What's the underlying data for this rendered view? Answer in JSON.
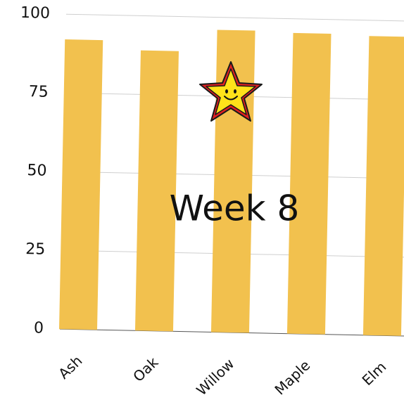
{
  "chart_data": {
    "type": "bar",
    "categories": [
      "Ash",
      "Oak",
      "Willow",
      "Maple",
      "Elm"
    ],
    "values": [
      92,
      89,
      96,
      95.5,
      95
    ],
    "color": "#f2c14e",
    "ylim": [
      0,
      100
    ],
    "yticks": [
      0,
      25,
      50,
      75,
      100
    ],
    "grid": true,
    "annotation": "Week 8"
  }
}
